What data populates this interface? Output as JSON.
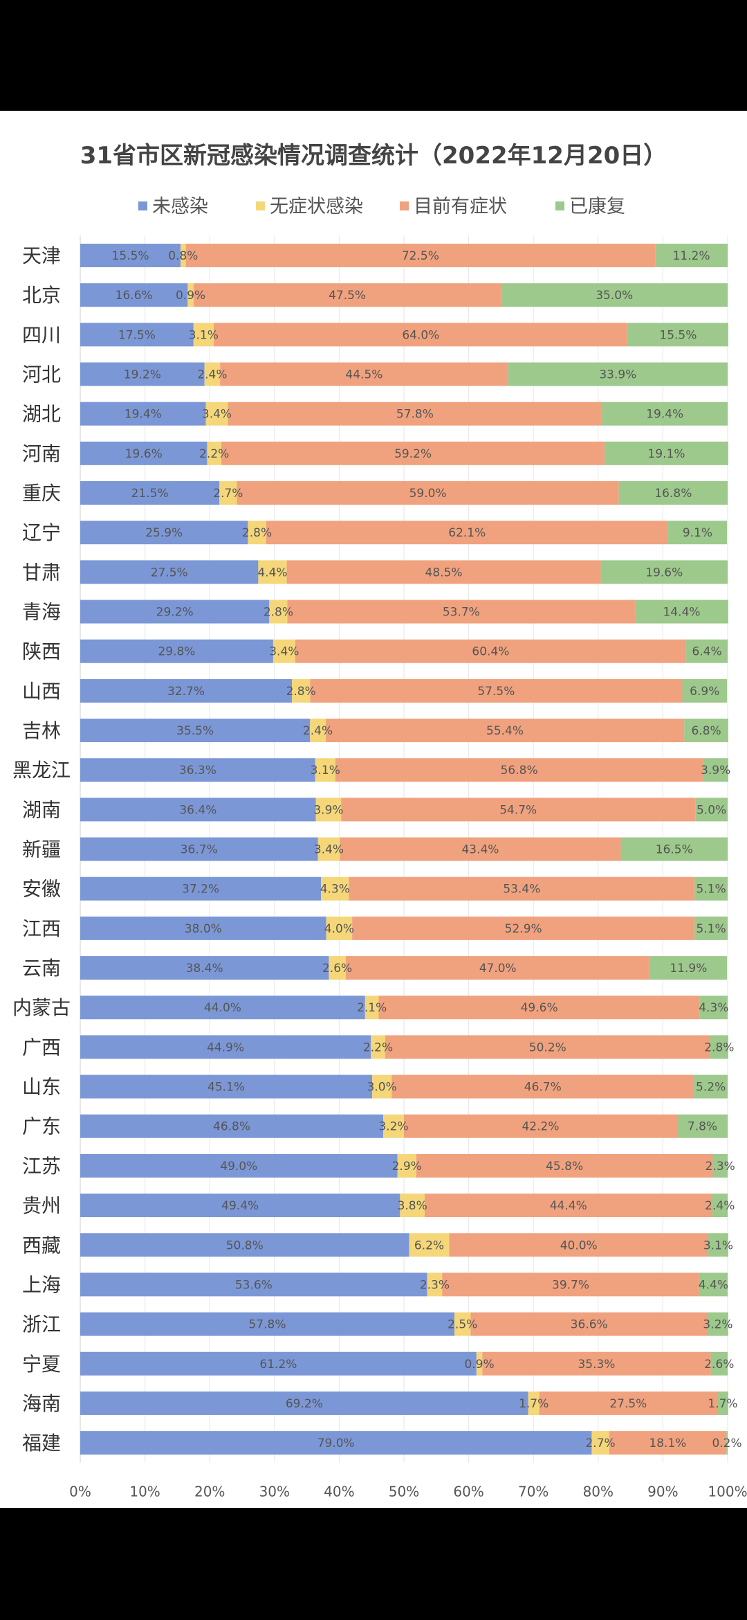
{
  "chart_data": {
    "type": "bar",
    "orientation": "horizontal",
    "stacked": true,
    "percent": true,
    "title": "31省市区新冠感染情况调查统计（2022年12月20日）",
    "xlabel": "",
    "ylabel": "",
    "xlim": [
      0,
      100
    ],
    "x_ticks": [
      "0%",
      "10%",
      "20%",
      "30%",
      "40%",
      "50%",
      "60%",
      "70%",
      "80%",
      "90%",
      "100%"
    ],
    "grid": true,
    "legend_position": "top",
    "categories": [
      "天津",
      "北京",
      "四川",
      "河北",
      "湖北",
      "河南",
      "重庆",
      "辽宁",
      "甘肃",
      "青海",
      "陕西",
      "山西",
      "吉林",
      "黑龙江",
      "湖南",
      "新疆",
      "安徽",
      "江西",
      "云南",
      "内蒙古",
      "广西",
      "山东",
      "广东",
      "江苏",
      "贵州",
      "西藏",
      "上海",
      "浙江",
      "宁夏",
      "海南",
      "福建"
    ],
    "series": [
      {
        "name": "未感染",
        "color": "#7b97d6",
        "values": [
          15.5,
          16.6,
          17.5,
          19.2,
          19.4,
          19.6,
          21.5,
          25.9,
          27.5,
          29.2,
          29.8,
          32.7,
          35.5,
          36.3,
          36.4,
          36.7,
          37.2,
          38.0,
          38.4,
          44.0,
          44.9,
          45.1,
          46.8,
          49.0,
          49.4,
          50.8,
          53.6,
          57.8,
          61.2,
          69.2,
          79.0
        ],
        "labels": [
          "15.5%",
          "16.6%",
          "17.5%",
          "19.2%",
          "19.4%",
          "19.6%",
          "21.5%",
          "25.9%",
          "27.5%",
          "29.2%",
          "29.8%",
          "32.7%",
          "35.5%",
          "36.3%",
          "36.4%",
          "36.7%",
          "37.2%",
          "38.0%",
          "38.4%",
          "44.0%",
          "44.9%",
          "45.1%",
          "46.8%",
          "49.0%",
          "49.4%",
          "50.8%",
          "53.6%",
          "57.8%",
          "61.2%",
          "69.2%",
          "79.0%"
        ]
      },
      {
        "name": "无症状感染",
        "color": "#f5d77a",
        "values": [
          0.8,
          0.9,
          3.1,
          2.4,
          3.4,
          2.2,
          2.7,
          2.8,
          4.4,
          2.8,
          3.4,
          2.8,
          2.4,
          3.1,
          3.9,
          3.4,
          4.3,
          4.0,
          2.6,
          2.1,
          2.2,
          3.0,
          3.2,
          2.9,
          3.8,
          6.2,
          2.3,
          2.5,
          0.9,
          1.7,
          2.7
        ],
        "labels": [
          "0.8%",
          "0.9%",
          "3.1%",
          "2.4%",
          "3.4%",
          "2.2%",
          "2.7%",
          "2.8%",
          "4.4%",
          "2.8%",
          "3.4%",
          "2.8%",
          "2.4%",
          "3.1%",
          "3.9%",
          "3.4%",
          "4.3%",
          "4.0%",
          "2.6%",
          "2.1%",
          "2.2%",
          "3.0%",
          "3.2%",
          "2.9%",
          "3.8%",
          "6.2%",
          "2.3%",
          "2.5%",
          "0.9%",
          "1.7%",
          "2.7%"
        ]
      },
      {
        "name": "目前有症状",
        "color": "#f0a27e",
        "values": [
          72.5,
          47.5,
          64.0,
          44.5,
          57.8,
          59.2,
          59.0,
          62.1,
          48.5,
          53.7,
          60.4,
          57.5,
          55.4,
          56.8,
          54.7,
          43.4,
          53.4,
          52.9,
          47.0,
          49.6,
          50.2,
          46.7,
          42.2,
          45.8,
          44.4,
          40.0,
          39.7,
          36.6,
          35.3,
          27.5,
          18.1
        ],
        "labels": [
          "72.5%",
          "47.5%",
          "64.0%",
          "44.5%",
          "57.8%",
          "59.2%",
          "59.0%",
          "62.1%",
          "48.5%",
          "53.7%",
          "60.4%",
          "57.5%",
          "55.4%",
          "56.8%",
          "54.7%",
          "43.4%",
          "53.4%",
          "52.9%",
          "47.0%",
          "49.6%",
          "50.2%",
          "46.7%",
          "42.2%",
          "45.8%",
          "44.4%",
          "40.0%",
          "39.7%",
          "36.6%",
          "35.3%",
          "27.5%",
          "18.1%"
        ]
      },
      {
        "name": "已康复",
        "color": "#9dc98c",
        "values": [
          11.2,
          35.0,
          15.5,
          33.9,
          19.4,
          19.1,
          16.8,
          9.1,
          19.6,
          14.4,
          6.4,
          6.9,
          6.8,
          3.9,
          5.0,
          16.5,
          5.1,
          5.1,
          11.9,
          4.3,
          2.8,
          5.2,
          7.8,
          2.3,
          2.4,
          3.1,
          4.4,
          3.2,
          2.6,
          1.7,
          0.2
        ],
        "labels": [
          "11.2%",
          "35.0%",
          "15.5%",
          "33.9%",
          "19.4%",
          "19.1%",
          "16.8%",
          "9.1%",
          "19.6%",
          "14.4%",
          "6.4%",
          "6.9%",
          "6.8%",
          "3.9%",
          "5.0%",
          "16.5%",
          "5.1%",
          "5.1%",
          "11.9%",
          "4.3%",
          "2.8%",
          "5.2%",
          "7.8%",
          "2.3%",
          "2.4%",
          "3.1%",
          "4.4%",
          "3.2%",
          "2.6%",
          "1.7%",
          "0.2%"
        ]
      }
    ]
  }
}
